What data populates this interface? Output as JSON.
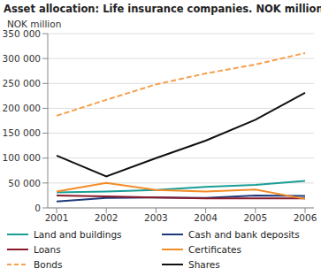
{
  "chart_data": {
    "type": "line",
    "title": "Asset allocation: Life insurance companies. NOK million",
    "y_label": "NOK million",
    "categories": [
      "2001",
      "2002",
      "2003",
      "2004",
      "2005",
      "2006"
    ],
    "ylim": [
      0,
      350000
    ],
    "yticks": [
      0,
      {
        "value": 50000,
        "label": "50 000"
      },
      {
        "value": 100000,
        "label": "100 000"
      },
      {
        "value": 150000,
        "label": "150 000"
      },
      {
        "value": 200000,
        "label": "200 000"
      },
      {
        "value": 250000,
        "label": "250 000"
      },
      {
        "value": 300000,
        "label": "300 000"
      },
      {
        "value": 350000,
        "label": "350 000"
      }
    ],
    "grid": true,
    "series": [
      {
        "name": "Land and buildings",
        "color": "#1a9e96",
        "line_style": "solid",
        "values": [
          31000,
          33000,
          36000,
          42000,
          46000,
          54000
        ]
      },
      {
        "name": "Cash and bank deposits",
        "color": "#1f3a7a",
        "line_style": "solid",
        "values": [
          13000,
          20000,
          21000,
          20000,
          25000,
          24000
        ]
      },
      {
        "name": "Loans",
        "color": "#8b1a2b",
        "line_style": "solid",
        "values": [
          25000,
          23000,
          21000,
          19000,
          19000,
          19000
        ]
      },
      {
        "name": "Certificates",
        "color": "#f28c28",
        "line_style": "solid",
        "values": [
          33000,
          50000,
          36000,
          33000,
          37000,
          18000
        ]
      },
      {
        "name": "Bonds",
        "color": "#f6a04d",
        "line_style": "dashed",
        "values": [
          185000,
          217000,
          248000,
          270000,
          288000,
          311000
        ]
      },
      {
        "name": "Shares",
        "color": "#111111",
        "line_style": "solid",
        "values": [
          105000,
          63000,
          100000,
          135000,
          177000,
          231000
        ]
      }
    ]
  }
}
